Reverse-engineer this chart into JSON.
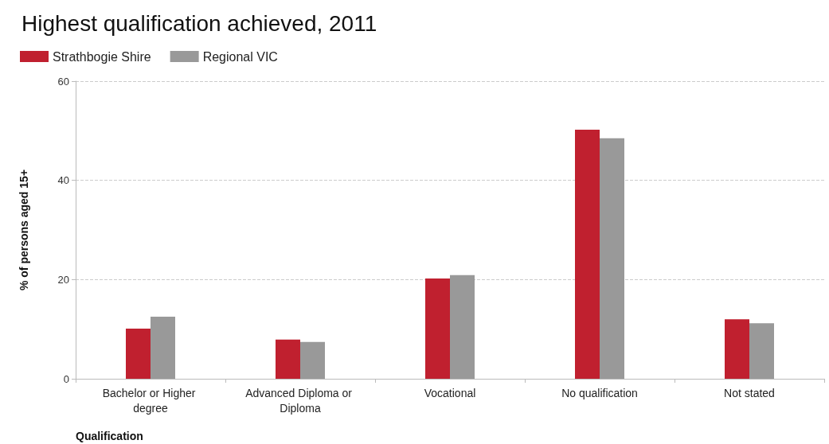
{
  "chart_data": {
    "type": "bar",
    "title": "Highest qualification achieved, 2011",
    "xlabel": "Qualification",
    "ylabel": "% of persons aged 15+",
    "categories": [
      "Bachelor or Higher degree",
      "Advanced Diploma or Diploma",
      "Vocational",
      "No qualification",
      "Not stated"
    ],
    "series": [
      {
        "name": "Strathbogie Shire",
        "color": "#c0202f",
        "values": [
          10.1,
          7.9,
          20.2,
          50.2,
          12.0
        ]
      },
      {
        "name": "Regional VIC",
        "color": "#999999",
        "values": [
          12.5,
          7.4,
          20.9,
          48.5,
          11.2
        ]
      }
    ],
    "ylim": [
      0,
      60
    ],
    "yticks": [
      0,
      20,
      40,
      60
    ],
    "grid": "y",
    "legend": "top left"
  }
}
